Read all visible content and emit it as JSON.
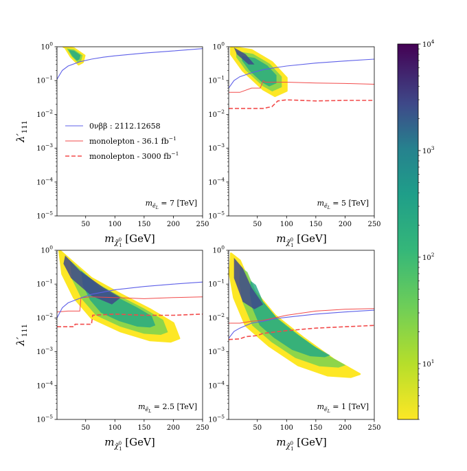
{
  "chart_data": {
    "type": "contour-panels",
    "legend": {
      "placement": "upper panel 1, middle-left",
      "entries": [
        {
          "name": "0nubb",
          "text": "0νββ : 2112.12658",
          "color": "#5d5fe8",
          "style": "solid"
        },
        {
          "name": "monolepton-36",
          "text": "monolepton - 36.1 fb",
          "suffix": "−1",
          "color": "#f24a4a",
          "style": "solid"
        },
        {
          "name": "monolepton-3000",
          "text": "monolepton - 3000 fb",
          "suffix": "−1",
          "color": "#f24a4a",
          "style": "dashed"
        }
      ]
    },
    "colorbar": {
      "ticks": [
        {
          "value": 10,
          "mantissa": "10",
          "exponent": "1"
        },
        {
          "value": 100,
          "mantissa": "10",
          "exponent": "2"
        },
        {
          "value": 1000,
          "mantissa": "10",
          "exponent": "3"
        },
        {
          "value": 10000,
          "mantissa": "10",
          "exponent": "4"
        }
      ],
      "range": [
        3,
        10000
      ],
      "scale": "log",
      "colormap": "viridis_r"
    },
    "axes": {
      "xlabel": "m",
      "xlabel_sub": "χ̃",
      "xlabel_sub_sup": "0",
      "xlabel_sub_sub": "1",
      "xlabel_unit": "[GeV]",
      "ylabel": "λ′",
      "ylabel_sub": "111",
      "xlim": [
        1,
        250
      ],
      "ylim_exp": [
        -5,
        0
      ],
      "xticks": [
        50,
        100,
        150,
        200,
        250
      ],
      "yticks": [
        {
          "exp": -5,
          "mantissa": "10",
          "exponent": "−5"
        },
        {
          "exp": -4,
          "mantissa": "10",
          "exponent": "−4"
        },
        {
          "exp": -3,
          "mantissa": "10",
          "exponent": "−3"
        },
        {
          "exp": -2,
          "mantissa": "10",
          "exponent": "−2"
        },
        {
          "exp": -1,
          "mantissa": "10",
          "exponent": "−1"
        },
        {
          "exp": 0,
          "mantissa": "10",
          "exponent": "0"
        }
      ],
      "yscale": "log"
    },
    "panels": [
      {
        "name": "panel-7TeV",
        "mass_label": {
          "m": "m",
          "sub": "ẽ",
          "subsub": "L",
          "value": "= 7 [TeV]"
        },
        "show_xlabel": true,
        "show_ylabel": true,
        "region": {
          "main": [
            [
              12,
              1.0
            ],
            [
              30,
              0.9
            ],
            [
              48,
              0.55
            ],
            [
              45,
              0.35
            ],
            [
              38,
              0.3
            ],
            [
              25,
              0.5
            ],
            [
              15,
              0.95
            ]
          ],
          "core": []
        },
        "zero_nubb": [
          [
            1,
            0.11
          ],
          [
            10,
            0.2
          ],
          [
            20,
            0.27
          ],
          [
            40,
            0.36
          ],
          [
            60,
            0.43
          ],
          [
            80,
            0.49
          ],
          [
            100,
            0.54
          ],
          [
            150,
            0.65
          ],
          [
            200,
            0.75
          ],
          [
            250,
            0.88
          ]
        ],
        "mono36": [],
        "mono3000": []
      },
      {
        "name": "panel-5TeV",
        "mass_label": {
          "m": "m",
          "sub": "ẽ",
          "subsub": "L",
          "value": "= 5 [TeV]"
        },
        "show_xlabel": true,
        "show_ylabel": false,
        "region": {
          "main": [
            [
              5,
              1.0
            ],
            [
              40,
              0.8
            ],
            [
              75,
              0.35
            ],
            [
              100,
              0.12
            ],
            [
              100,
              0.05
            ],
            [
              80,
              0.035
            ],
            [
              60,
              0.055
            ],
            [
              25,
              0.2
            ],
            [
              5,
              0.6
            ]
          ],
          "core": [
            [
              10,
              0.95
            ],
            [
              30,
              0.6
            ],
            [
              45,
              0.3
            ],
            [
              35,
              0.3
            ],
            [
              15,
              0.6
            ]
          ]
        },
        "zero_nubb": [
          [
            1,
            0.06
          ],
          [
            10,
            0.1
          ],
          [
            20,
            0.13
          ],
          [
            40,
            0.17
          ],
          [
            60,
            0.21
          ],
          [
            80,
            0.24
          ],
          [
            100,
            0.27
          ],
          [
            150,
            0.33
          ],
          [
            200,
            0.38
          ],
          [
            250,
            0.43
          ]
        ],
        "mono36": [
          [
            1,
            0.045
          ],
          [
            20,
            0.045
          ],
          [
            40,
            0.06
          ],
          [
            55,
            0.06
          ],
          [
            60,
            0.1
          ],
          [
            63,
            0.09
          ],
          [
            100,
            0.09
          ],
          [
            150,
            0.085
          ],
          [
            200,
            0.082
          ],
          [
            250,
            0.078
          ]
        ],
        "mono3000": [
          [
            1,
            0.015
          ],
          [
            60,
            0.015
          ],
          [
            75,
            0.017
          ],
          [
            85,
            0.025
          ],
          [
            100,
            0.027
          ],
          [
            150,
            0.025
          ],
          [
            200,
            0.026
          ],
          [
            250,
            0.026
          ]
        ]
      },
      {
        "name": "panel-2.5TeV",
        "mass_label": {
          "m": "m",
          "sub": "ẽ",
          "subsub": "L",
          "value": "= 2.5 [TeV]"
        },
        "show_xlabel": true,
        "show_ylabel": true,
        "region": {
          "main": [
            [
              5,
              1.0
            ],
            [
              25,
              0.5
            ],
            [
              60,
              0.15
            ],
            [
              110,
              0.05
            ],
            [
              160,
              0.018
            ],
            [
              200,
              0.007
            ],
            [
              210,
              0.0025
            ],
            [
              195,
              0.002
            ],
            [
              160,
              0.0022
            ],
            [
              110,
              0.004
            ],
            [
              60,
              0.01
            ],
            [
              30,
              0.04
            ],
            [
              10,
              0.2
            ]
          ],
          "core": [
            [
              15,
              0.7
            ],
            [
              40,
              0.25
            ],
            [
              80,
              0.08
            ],
            [
              110,
              0.04
            ],
            [
              95,
              0.025
            ],
            [
              60,
              0.045
            ],
            [
              25,
              0.15
            ],
            [
              12,
              0.4
            ]
          ]
        },
        "zero_nubb": [
          [
            1,
            0.01
          ],
          [
            10,
            0.02
          ],
          [
            20,
            0.028
          ],
          [
            40,
            0.038
          ],
          [
            60,
            0.05
          ],
          [
            80,
            0.058
          ],
          [
            100,
            0.068
          ],
          [
            150,
            0.085
          ],
          [
            200,
            0.1
          ],
          [
            250,
            0.115
          ]
        ],
        "mono36": [
          [
            1,
            0.015
          ],
          [
            20,
            0.016
          ],
          [
            40,
            0.016
          ],
          [
            42,
            0.04
          ],
          [
            60,
            0.042
          ],
          [
            100,
            0.04
          ],
          [
            150,
            0.037
          ],
          [
            200,
            0.04
          ],
          [
            250,
            0.042
          ]
        ],
        "mono3000": [
          [
            1,
            0.0055
          ],
          [
            30,
            0.0055
          ],
          [
            32,
            0.0065
          ],
          [
            60,
            0.0065
          ],
          [
            62,
            0.012
          ],
          [
            100,
            0.013
          ],
          [
            150,
            0.012
          ],
          [
            200,
            0.012
          ],
          [
            250,
            0.013
          ]
        ]
      },
      {
        "name": "panel-1TeV",
        "mass_label": {
          "m": "m",
          "sub": "ẽ",
          "subsub": "L",
          "value": "= 1 [TeV]"
        },
        "show_xlabel": true,
        "show_ylabel": false,
        "region": {
          "main": [
            [
              5,
              0.8
            ],
            [
              20,
              0.5
            ],
            [
              40,
              0.08
            ],
            [
              80,
              0.012
            ],
            [
              130,
              0.0025
            ],
            [
              180,
              0.0006
            ],
            [
              225,
              0.00022
            ],
            [
              210,
              0.00018
            ],
            [
              170,
              0.0002
            ],
            [
              120,
              0.0004
            ],
            [
              70,
              0.0015
            ],
            [
              30,
              0.006
            ],
            [
              10,
              0.04
            ],
            [
              3,
              0.2
            ]
          ],
          "core": [
            [
              10,
              0.6
            ],
            [
              25,
              0.3
            ],
            [
              40,
              0.08
            ],
            [
              60,
              0.025
            ],
            [
              45,
              0.018
            ],
            [
              25,
              0.03
            ],
            [
              10,
              0.15
            ]
          ]
        },
        "zero_nubb": [
          [
            1,
            0.0025
          ],
          [
            10,
            0.004
          ],
          [
            20,
            0.005
          ],
          [
            40,
            0.007
          ],
          [
            60,
            0.008
          ],
          [
            80,
            0.0095
          ],
          [
            100,
            0.0105
          ],
          [
            150,
            0.013
          ],
          [
            200,
            0.015
          ],
          [
            250,
            0.017
          ]
        ],
        "mono36": [
          [
            1,
            0.007
          ],
          [
            20,
            0.007
          ],
          [
            40,
            0.008
          ],
          [
            60,
            0.0085
          ],
          [
            100,
            0.012
          ],
          [
            150,
            0.016
          ],
          [
            200,
            0.018
          ],
          [
            250,
            0.019
          ]
        ],
        "mono3000": [
          [
            1,
            0.0023
          ],
          [
            20,
            0.0024
          ],
          [
            30,
            0.0028
          ],
          [
            50,
            0.003
          ],
          [
            60,
            0.0035
          ],
          [
            100,
            0.0042
          ],
          [
            150,
            0.005
          ],
          [
            200,
            0.0055
          ],
          [
            250,
            0.006
          ]
        ]
      }
    ]
  }
}
